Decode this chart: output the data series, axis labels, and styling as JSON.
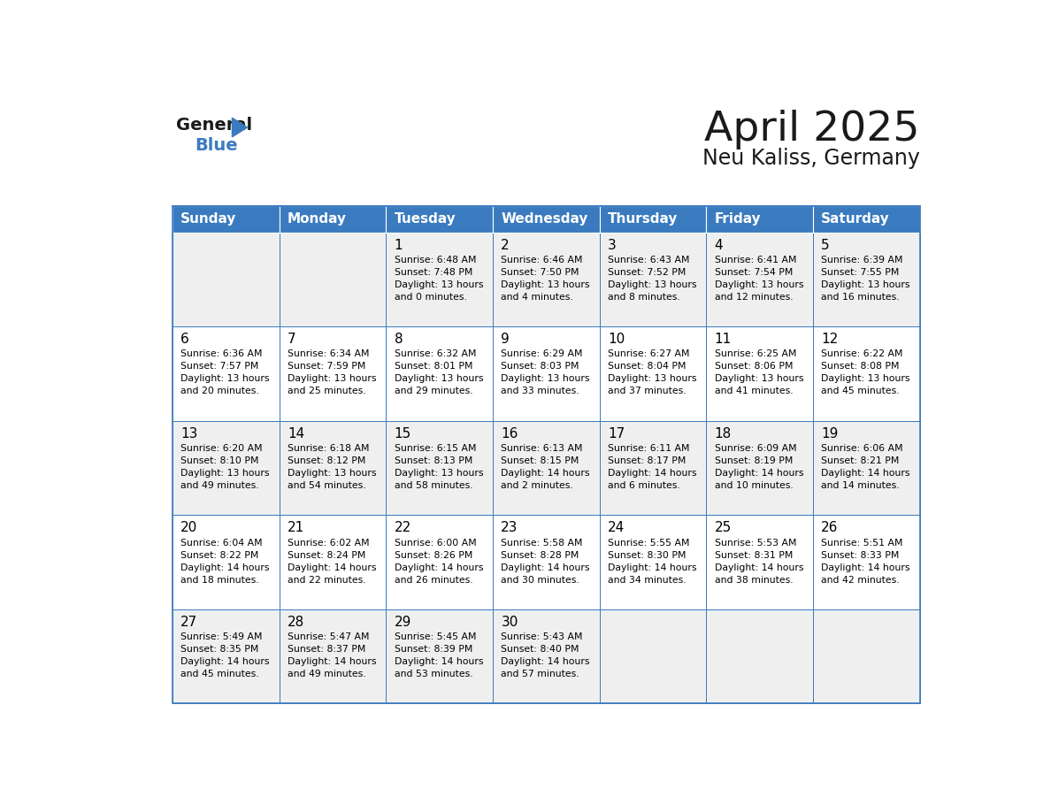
{
  "title": "April 2025",
  "subtitle": "Neu Kaliss, Germany",
  "header_color": "#3a7bbf",
  "header_text_color": "#ffffff",
  "cell_bg_white": "#ffffff",
  "cell_bg_gray": "#efefef",
  "border_color": "#3a7bbf",
  "text_color": "#000000",
  "days_of_week": [
    "Sunday",
    "Monday",
    "Tuesday",
    "Wednesday",
    "Thursday",
    "Friday",
    "Saturday"
  ],
  "weeks": [
    [
      {
        "day": "",
        "info": ""
      },
      {
        "day": "",
        "info": ""
      },
      {
        "day": "1",
        "info": "Sunrise: 6:48 AM\nSunset: 7:48 PM\nDaylight: 13 hours\nand 0 minutes."
      },
      {
        "day": "2",
        "info": "Sunrise: 6:46 AM\nSunset: 7:50 PM\nDaylight: 13 hours\nand 4 minutes."
      },
      {
        "day": "3",
        "info": "Sunrise: 6:43 AM\nSunset: 7:52 PM\nDaylight: 13 hours\nand 8 minutes."
      },
      {
        "day": "4",
        "info": "Sunrise: 6:41 AM\nSunset: 7:54 PM\nDaylight: 13 hours\nand 12 minutes."
      },
      {
        "day": "5",
        "info": "Sunrise: 6:39 AM\nSunset: 7:55 PM\nDaylight: 13 hours\nand 16 minutes."
      }
    ],
    [
      {
        "day": "6",
        "info": "Sunrise: 6:36 AM\nSunset: 7:57 PM\nDaylight: 13 hours\nand 20 minutes."
      },
      {
        "day": "7",
        "info": "Sunrise: 6:34 AM\nSunset: 7:59 PM\nDaylight: 13 hours\nand 25 minutes."
      },
      {
        "day": "8",
        "info": "Sunrise: 6:32 AM\nSunset: 8:01 PM\nDaylight: 13 hours\nand 29 minutes."
      },
      {
        "day": "9",
        "info": "Sunrise: 6:29 AM\nSunset: 8:03 PM\nDaylight: 13 hours\nand 33 minutes."
      },
      {
        "day": "10",
        "info": "Sunrise: 6:27 AM\nSunset: 8:04 PM\nDaylight: 13 hours\nand 37 minutes."
      },
      {
        "day": "11",
        "info": "Sunrise: 6:25 AM\nSunset: 8:06 PM\nDaylight: 13 hours\nand 41 minutes."
      },
      {
        "day": "12",
        "info": "Sunrise: 6:22 AM\nSunset: 8:08 PM\nDaylight: 13 hours\nand 45 minutes."
      }
    ],
    [
      {
        "day": "13",
        "info": "Sunrise: 6:20 AM\nSunset: 8:10 PM\nDaylight: 13 hours\nand 49 minutes."
      },
      {
        "day": "14",
        "info": "Sunrise: 6:18 AM\nSunset: 8:12 PM\nDaylight: 13 hours\nand 54 minutes."
      },
      {
        "day": "15",
        "info": "Sunrise: 6:15 AM\nSunset: 8:13 PM\nDaylight: 13 hours\nand 58 minutes."
      },
      {
        "day": "16",
        "info": "Sunrise: 6:13 AM\nSunset: 8:15 PM\nDaylight: 14 hours\nand 2 minutes."
      },
      {
        "day": "17",
        "info": "Sunrise: 6:11 AM\nSunset: 8:17 PM\nDaylight: 14 hours\nand 6 minutes."
      },
      {
        "day": "18",
        "info": "Sunrise: 6:09 AM\nSunset: 8:19 PM\nDaylight: 14 hours\nand 10 minutes."
      },
      {
        "day": "19",
        "info": "Sunrise: 6:06 AM\nSunset: 8:21 PM\nDaylight: 14 hours\nand 14 minutes."
      }
    ],
    [
      {
        "day": "20",
        "info": "Sunrise: 6:04 AM\nSunset: 8:22 PM\nDaylight: 14 hours\nand 18 minutes."
      },
      {
        "day": "21",
        "info": "Sunrise: 6:02 AM\nSunset: 8:24 PM\nDaylight: 14 hours\nand 22 minutes."
      },
      {
        "day": "22",
        "info": "Sunrise: 6:00 AM\nSunset: 8:26 PM\nDaylight: 14 hours\nand 26 minutes."
      },
      {
        "day": "23",
        "info": "Sunrise: 5:58 AM\nSunset: 8:28 PM\nDaylight: 14 hours\nand 30 minutes."
      },
      {
        "day": "24",
        "info": "Sunrise: 5:55 AM\nSunset: 8:30 PM\nDaylight: 14 hours\nand 34 minutes."
      },
      {
        "day": "25",
        "info": "Sunrise: 5:53 AM\nSunset: 8:31 PM\nDaylight: 14 hours\nand 38 minutes."
      },
      {
        "day": "26",
        "info": "Sunrise: 5:51 AM\nSunset: 8:33 PM\nDaylight: 14 hours\nand 42 minutes."
      }
    ],
    [
      {
        "day": "27",
        "info": "Sunrise: 5:49 AM\nSunset: 8:35 PM\nDaylight: 14 hours\nand 45 minutes."
      },
      {
        "day": "28",
        "info": "Sunrise: 5:47 AM\nSunset: 8:37 PM\nDaylight: 14 hours\nand 49 minutes."
      },
      {
        "day": "29",
        "info": "Sunrise: 5:45 AM\nSunset: 8:39 PM\nDaylight: 14 hours\nand 53 minutes."
      },
      {
        "day": "30",
        "info": "Sunrise: 5:43 AM\nSunset: 8:40 PM\nDaylight: 14 hours\nand 57 minutes."
      },
      {
        "day": "",
        "info": ""
      },
      {
        "day": "",
        "info": ""
      },
      {
        "day": "",
        "info": ""
      }
    ]
  ]
}
